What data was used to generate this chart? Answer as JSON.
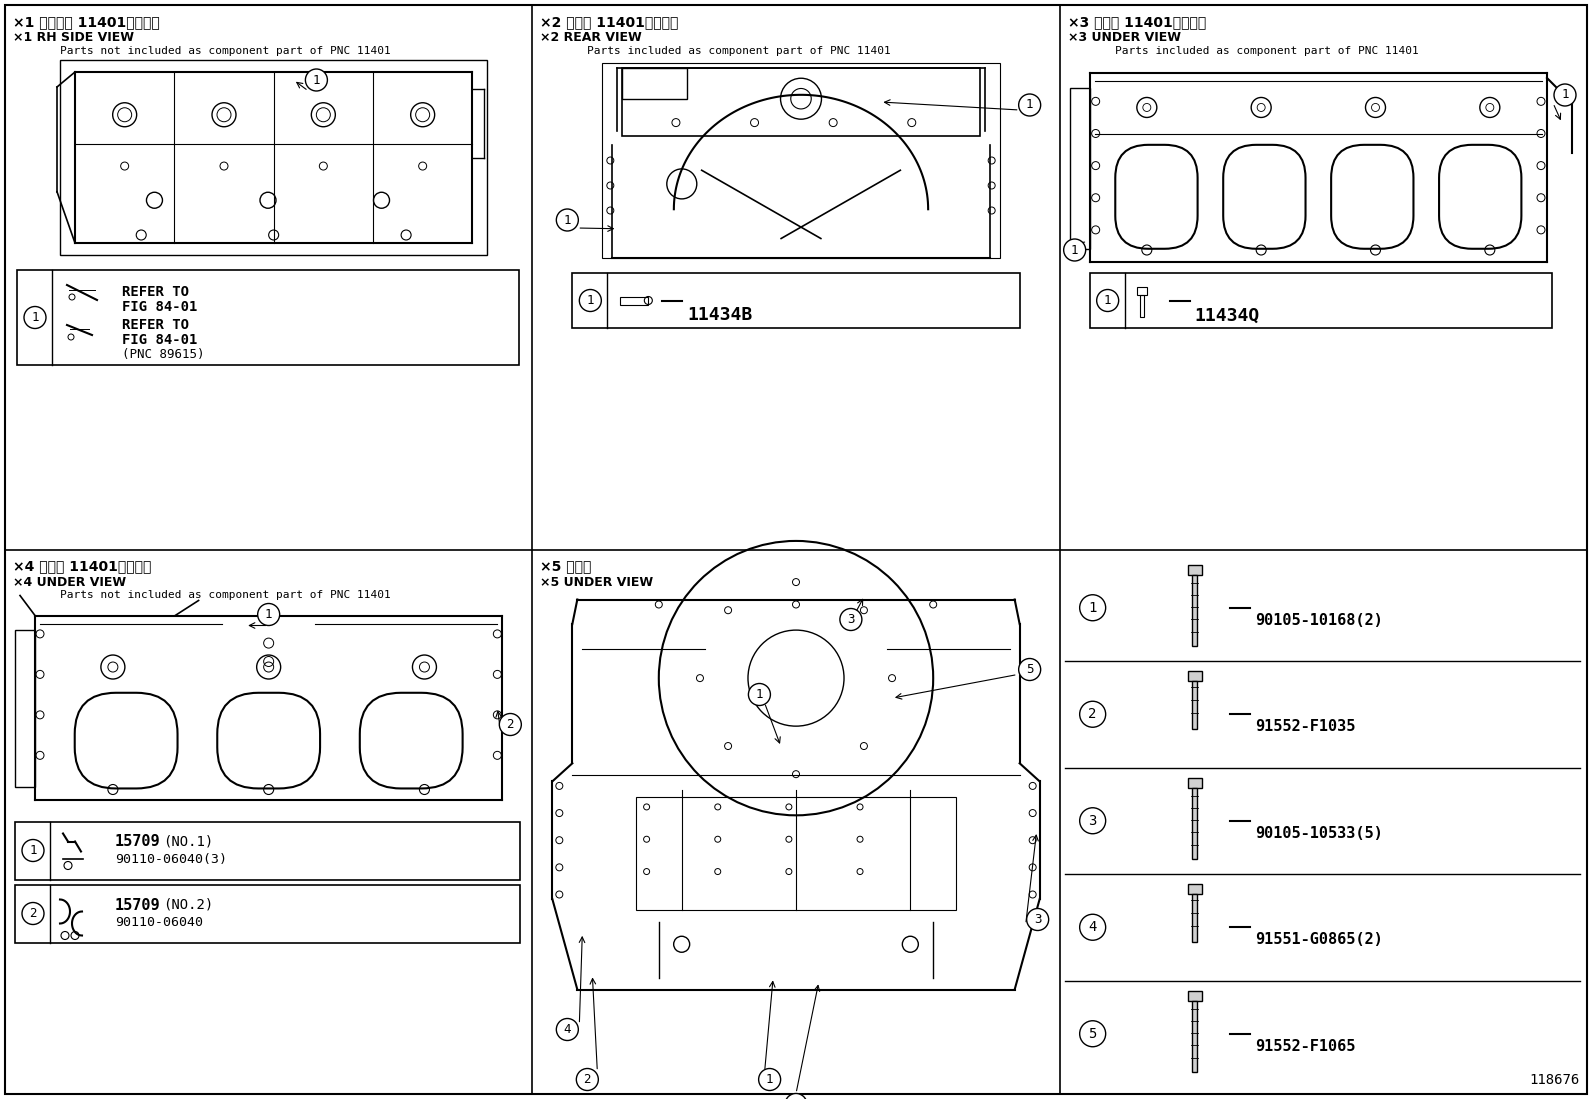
{
  "bg_color": "#ffffff",
  "page_num": "118676",
  "title1_jp": "×1 右側面視 11401の構成外",
  "title1_en": "×1 RH SIDE VIEW",
  "title1_sub": "    Parts not included as component part of PNC 11401",
  "title2_jp": "×2 後方視 11401の構成内",
  "title2_en": "×2 REAR VIEW",
  "title2_sub": "    Parts included as component part of PNC 11401",
  "title3_jp": "×3 下面視 11401の構成内",
  "title3_en": "×3 UNDER VIEW",
  "title3_sub": "    Parts included as component part of PNC 11401",
  "title4_jp": "×4 下面視 11401の構成外",
  "title4_en": "×4 UNDER VIEW",
  "title4_sub": "    Parts not included as component part of PNC 11401",
  "title5_jp": "×5 下面視",
  "title5_en": "×5 UNDER VIEW",
  "part2_code": "11434B",
  "part3_code": "11434Q",
  "p1_refer1": "REFER TO",
  "p1_refer2": "FIG 84-01",
  "p1_refer3": "REFER TO",
  "p1_refer4": "FIG 84-01",
  "p1_refer5": "(PNC 89615)",
  "p4_part1a": "15709",
  "p4_part1b": "(NO.1)",
  "p4_part1c": "90110-06040(3)",
  "p4_part2a": "15709",
  "p4_part2b": "(NO.2)",
  "p4_part2c": "90110-06040",
  "parts": [
    {
      "num": "1",
      "code": "90105-10168(2)"
    },
    {
      "num": "2",
      "code": "91552-F1035"
    },
    {
      "num": "3",
      "code": "90105-10533(5)"
    },
    {
      "num": "4",
      "code": "91551-G0865(2)"
    },
    {
      "num": "5",
      "code": "91552-F1065"
    }
  ]
}
